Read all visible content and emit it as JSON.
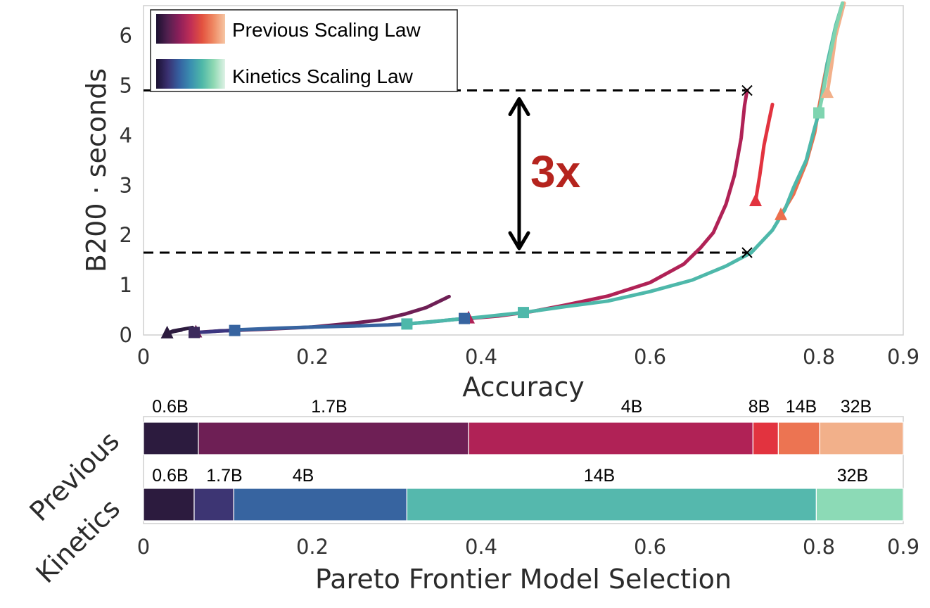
{
  "chart_data": [
    {
      "type": "line",
      "xlabel": "Accuracy",
      "ylabel": "B200 · seconds",
      "xlim": [
        0,
        0.9
      ],
      "ylim": [
        0,
        6.6
      ],
      "xticks": [
        "0",
        "0.2",
        "0.4",
        "0.6",
        "0.8",
        "0.9"
      ],
      "xtick_values": [
        0,
        0.2,
        0.4,
        0.6,
        0.8,
        0.9
      ],
      "yticks": [
        "0",
        "1",
        "2",
        "3",
        "4",
        "5",
        "6"
      ],
      "ytick_values": [
        0,
        1,
        2,
        3,
        4,
        5,
        6
      ],
      "legend": {
        "position": "top-left",
        "entries": [
          {
            "label": "Previous Scaling Law",
            "gradient": [
              "#1a1030",
              "#52204f",
              "#8c1f5a",
              "#c02e56",
              "#e3523f",
              "#ef8a64",
              "#f6c6a4"
            ]
          },
          {
            "label": "Kinetics Scaling Law",
            "gradient": [
              "#1a1030",
              "#3a3070",
              "#3560a0",
              "#3a8fb0",
              "#4fb8a8",
              "#8ed8b2",
              "#dff2e6"
            ]
          }
        ]
      },
      "series": [
        {
          "name": "Previous 0.6B",
          "group": "previous",
          "color": "#2c1b3e",
          "points": [
            [
              0.028,
              0.03
            ],
            [
              0.035,
              0.08
            ],
            [
              0.045,
              0.11
            ],
            [
              0.058,
              0.15
            ]
          ],
          "marker_at": 0
        },
        {
          "name": "Previous 1.7B",
          "group": "previous",
          "color": "#6e1f55",
          "points": [
            [
              0.062,
              0.05
            ],
            [
              0.09,
              0.08
            ],
            [
              0.15,
              0.12
            ],
            [
              0.2,
              0.16
            ],
            [
              0.25,
              0.24
            ],
            [
              0.28,
              0.3
            ],
            [
              0.31,
              0.42
            ],
            [
              0.335,
              0.55
            ],
            [
              0.362,
              0.77
            ]
          ],
          "marker_at": 0
        },
        {
          "name": "Previous 4B",
          "group": "previous",
          "color": "#b02256",
          "points": [
            [
              0.385,
              0.33
            ],
            [
              0.42,
              0.38
            ],
            [
              0.46,
              0.47
            ],
            [
              0.5,
              0.6
            ],
            [
              0.55,
              0.78
            ],
            [
              0.6,
              1.05
            ],
            [
              0.64,
              1.42
            ],
            [
              0.66,
              1.75
            ],
            [
              0.675,
              2.05
            ],
            [
              0.69,
              2.62
            ],
            [
              0.7,
              3.2
            ],
            [
              0.708,
              3.95
            ],
            [
              0.712,
              4.6
            ],
            [
              0.715,
              4.9
            ]
          ],
          "marker_at": 0
        },
        {
          "name": "Previous 8B",
          "group": "previous",
          "color": "#e2333f",
          "points": [
            [
              0.725,
              2.68
            ],
            [
              0.73,
              3.2
            ],
            [
              0.735,
              3.8
            ],
            [
              0.741,
              4.3
            ],
            [
              0.745,
              4.62
            ]
          ],
          "marker_at": 0
        },
        {
          "name": "Previous 14B",
          "group": "previous",
          "color": "#ec6f4d",
          "points": [
            [
              0.755,
              2.4
            ],
            [
              0.77,
              2.82
            ],
            [
              0.785,
              3.45
            ],
            [
              0.795,
              4.05
            ],
            [
              0.8,
              4.55
            ],
            [
              0.805,
              5.02
            ],
            [
              0.81,
              5.45
            ]
          ],
          "marker_at": 0
        },
        {
          "name": "Previous 32B",
          "group": "previous",
          "color": "#f2b08a",
          "points": [
            [
              0.81,
              4.85
            ],
            [
              0.815,
              5.4
            ],
            [
              0.82,
              6.0
            ],
            [
              0.83,
              6.65
            ]
          ],
          "marker_at": 0
        },
        {
          "name": "Kinetics 0.6B",
          "group": "kinetics",
          "color": "#2c1b3e",
          "points": [
            [
              0.028,
              0.03
            ],
            [
              0.036,
              0.07
            ],
            [
              0.045,
              0.1
            ]
          ],
          "marker_at": -1
        },
        {
          "name": "Kinetics 1.7B",
          "group": "kinetics",
          "color": "#3b3680",
          "points": [
            [
              0.06,
              0.05
            ],
            [
              0.075,
              0.06
            ],
            [
              0.09,
              0.08
            ],
            [
              0.108,
              0.09
            ]
          ],
          "marker_at": 0
        },
        {
          "name": "Kinetics 4B",
          "group": "kinetics",
          "color": "#3764a0",
          "points": [
            [
              0.108,
              0.1
            ],
            [
              0.15,
              0.13
            ],
            [
              0.2,
              0.16
            ],
            [
              0.25,
              0.18
            ],
            [
              0.29,
              0.2
            ],
            [
              0.312,
              0.22
            ],
            [
              0.345,
              0.27
            ],
            [
              0.38,
              0.33
            ]
          ],
          "marker_at": 0
        },
        {
          "name": "Kinetics 14B",
          "group": "kinetics",
          "color": "#4eb8aa",
          "points": [
            [
              0.312,
              0.22
            ],
            [
              0.35,
              0.28
            ],
            [
              0.4,
              0.36
            ],
            [
              0.45,
              0.45
            ],
            [
              0.5,
              0.57
            ],
            [
              0.55,
              0.68
            ],
            [
              0.6,
              0.87
            ],
            [
              0.65,
              1.1
            ],
            [
              0.69,
              1.38
            ],
            [
              0.72,
              1.65
            ],
            [
              0.745,
              2.1
            ],
            [
              0.76,
              2.52
            ],
            [
              0.77,
              2.95
            ],
            [
              0.785,
              3.5
            ],
            [
              0.795,
              4.15
            ],
            [
              0.8,
              4.45
            ],
            [
              0.805,
              4.9
            ],
            [
              0.81,
              5.45
            ],
            [
              0.82,
              6.2
            ],
            [
              0.828,
              6.65
            ]
          ],
          "marker_at": 0
        },
        {
          "name": "Kinetics 32B",
          "group": "kinetics",
          "color": "#7fd4b0",
          "points": [
            [
              0.8,
              4.45
            ],
            [
              0.805,
              4.85
            ],
            [
              0.812,
              5.5
            ],
            [
              0.82,
              6.15
            ],
            [
              0.828,
              6.65
            ]
          ],
          "marker_at": 0
        }
      ],
      "markers": [
        {
          "shape": "triangle",
          "x": 0.028,
          "y": 0.03,
          "color": "#2c1b3e"
        },
        {
          "shape": "triangle",
          "x": 0.062,
          "y": 0.05,
          "color": "#6e1f55"
        },
        {
          "shape": "triangle",
          "x": 0.385,
          "y": 0.33,
          "color": "#b02256"
        },
        {
          "shape": "triangle",
          "x": 0.725,
          "y": 2.68,
          "color": "#e2333f"
        },
        {
          "shape": "triangle",
          "x": 0.755,
          "y": 2.4,
          "color": "#ec6f4d"
        },
        {
          "shape": "triangle",
          "x": 0.81,
          "y": 4.85,
          "color": "#f2b08a"
        },
        {
          "shape": "square",
          "x": 0.06,
          "y": 0.05,
          "color": "#3b2a5c"
        },
        {
          "shape": "square",
          "x": 0.108,
          "y": 0.09,
          "color": "#3764a0"
        },
        {
          "shape": "square",
          "x": 0.312,
          "y": 0.22,
          "color": "#4eb8aa"
        },
        {
          "shape": "square",
          "x": 0.38,
          "y": 0.33,
          "color": "#3764a0"
        },
        {
          "shape": "square",
          "x": 0.45,
          "y": 0.45,
          "color": "#4eb8aa"
        },
        {
          "shape": "square",
          "x": 0.8,
          "y": 4.45,
          "color": "#7fd4b0"
        },
        {
          "shape": "x",
          "x": 0.715,
          "y": 4.9,
          "color": "#000000"
        },
        {
          "shape": "x",
          "x": 0.715,
          "y": 1.65,
          "color": "#000000"
        }
      ],
      "annotations": {
        "hline_top": 4.9,
        "hline_bottom": 1.65,
        "arrow_x": 0.445,
        "ratio_text": "3x",
        "ratio_color": "#b5241e"
      }
    },
    {
      "type": "bar",
      "orientation": "horizontal-stacked",
      "xlabel": "Pareto Frontier Model Selection",
      "xlim": [
        0,
        0.9
      ],
      "xticks": [
        "0",
        "0.2",
        "0.4",
        "0.6",
        "0.8",
        "0.9"
      ],
      "xtick_values": [
        0,
        0.2,
        0.4,
        0.6,
        0.8,
        0.9
      ],
      "categories": [
        "Previous",
        "Kinetics"
      ],
      "rows": [
        {
          "name": "Previous",
          "segments": [
            {
              "label": "0.6B",
              "start": 0.0,
              "end": 0.065,
              "color": "#2c1b3e"
            },
            {
              "label": "1.7B",
              "start": 0.065,
              "end": 0.385,
              "color": "#6e1f55"
            },
            {
              "label": "4B",
              "start": 0.385,
              "end": 0.722,
              "color": "#b02256"
            },
            {
              "label": "8B",
              "start": 0.722,
              "end": 0.752,
              "color": "#e2333f"
            },
            {
              "label": "14B",
              "start": 0.752,
              "end": 0.801,
              "color": "#ec7452"
            },
            {
              "label": "32B",
              "start": 0.801,
              "end": 0.9,
              "color": "#f2b08a"
            }
          ]
        },
        {
          "name": "Kinetics",
          "segments": [
            {
              "label": "0.6B",
              "start": 0.0,
              "end": 0.06,
              "color": "#2c1b3e"
            },
            {
              "label": "1.7B",
              "start": 0.06,
              "end": 0.107,
              "color": "#3d3573"
            },
            {
              "label": "4B",
              "start": 0.107,
              "end": 0.312,
              "color": "#3764a0"
            },
            {
              "label": "14B",
              "start": 0.312,
              "end": 0.797,
              "color": "#55b8ad"
            },
            {
              "label": "32B",
              "start": 0.797,
              "end": 0.9,
              "color": "#8cdab6"
            }
          ]
        }
      ]
    }
  ]
}
